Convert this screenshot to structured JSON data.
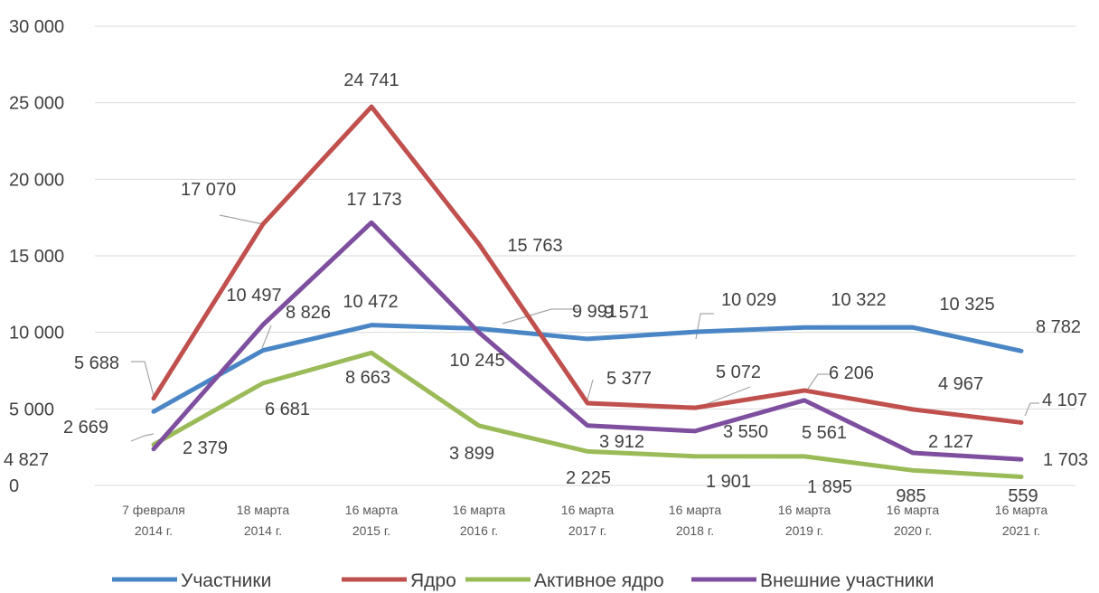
{
  "chart_data": {
    "type": "line",
    "title": "",
    "xlabel": "",
    "ylabel": "",
    "ylim": [
      0,
      30000
    ],
    "yticks": [
      0,
      5000,
      10000,
      15000,
      20000,
      25000,
      30000
    ],
    "ytick_labels": [
      "0",
      "5 000",
      "10 000",
      "15 000",
      "20 000",
      "25 000",
      "30 000"
    ],
    "grid": true,
    "legend_position": "bottom",
    "categories": [
      [
        "7 февраля",
        "2014 г."
      ],
      [
        "18 марта",
        "2014 г."
      ],
      [
        "16 марта",
        "2015 г."
      ],
      [
        "16 марта",
        "2016 г."
      ],
      [
        "16 марта",
        "2017 г."
      ],
      [
        "16 марта",
        "2018 г."
      ],
      [
        "16 марта",
        "2019 г."
      ],
      [
        "16 марта",
        "2020 г."
      ],
      [
        "16 марта",
        "2021 г."
      ]
    ],
    "series": [
      {
        "name": "Участники",
        "color": "#4a86c5",
        "values": [
          4827,
          8826,
          10472,
          10245,
          9571,
          10029,
          10322,
          10325,
          8782
        ],
        "labels": [
          "4 827",
          "8 826",
          "10 472",
          "10 245",
          "9 571",
          "10 029",
          "10 322",
          "10 325",
          "8 782"
        ]
      },
      {
        "name": "Ядро",
        "color": "#c0504d",
        "values": [
          5688,
          17070,
          24741,
          15763,
          5377,
          5072,
          6206,
          4967,
          4107
        ],
        "labels": [
          "5 688",
          "17 070",
          "24 741",
          "15 763",
          "5 377",
          "5 072",
          "6 206",
          "4 967",
          "4 107"
        ]
      },
      {
        "name": "Активное ядро",
        "color": "#9bbb59",
        "values": [
          2669,
          6681,
          8663,
          3899,
          2225,
          1901,
          1895,
          985,
          559
        ],
        "labels": [
          "2 669",
          "6 681",
          "8 663",
          "3 899",
          "2 225",
          "1 901",
          "1 895",
          "985",
          "559"
        ]
      },
      {
        "name": "Внешние участники",
        "color": "#7f4f9f",
        "values": [
          2379,
          10497,
          17173,
          9991,
          3912,
          3550,
          5561,
          2127,
          1703
        ],
        "labels": [
          "2 379",
          "10 497",
          "17 173",
          "9 991",
          "3 912",
          "3 550",
          "5 561",
          "2 127",
          "1 703"
        ]
      }
    ]
  }
}
